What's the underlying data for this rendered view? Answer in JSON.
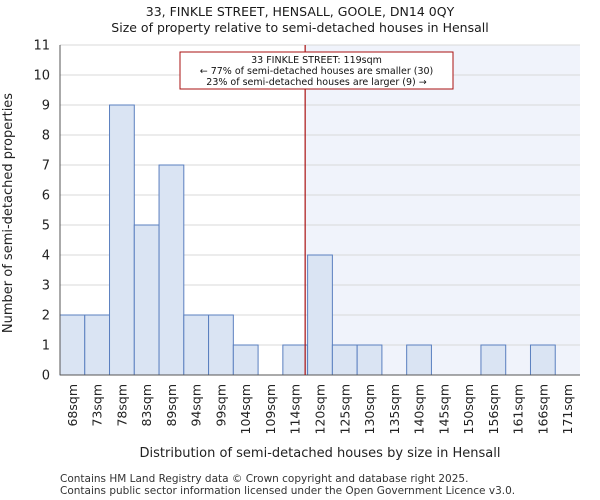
{
  "header": {
    "title": "33, FINKLE STREET, HENSALL, GOOLE, DN14 0QY",
    "subtitle": "Size of property relative to semi-detached houses in Hensall"
  },
  "footer": {
    "line1": "Contains HM Land Registry data © Crown copyright and database right 2025.",
    "line2": "Contains public sector information licensed under the Open Government Licence v3.0."
  },
  "chart_data": {
    "type": "bar",
    "title": "33, FINKLE STREET, HENSALL, GOOLE, DN14 0QY",
    "subtitle": "Size of property relative to semi-detached houses in Hensall",
    "xlabel": "Distribution of semi-detached houses by size in Hensall",
    "ylabel": "Number of semi-detached properties",
    "categories": [
      "68sqm",
      "73sqm",
      "78sqm",
      "83sqm",
      "89sqm",
      "94sqm",
      "99sqm",
      "104sqm",
      "109sqm",
      "114sqm",
      "120sqm",
      "125sqm",
      "130sqm",
      "135sqm",
      "140sqm",
      "145sqm",
      "150sqm",
      "156sqm",
      "161sqm",
      "166sqm",
      "171sqm"
    ],
    "values": [
      2,
      2,
      9,
      5,
      7,
      2,
      2,
      1,
      0,
      1,
      4,
      1,
      1,
      0,
      1,
      0,
      0,
      1,
      0,
      1,
      0
    ],
    "ylim": [
      0,
      11
    ],
    "yticks": [
      0,
      1,
      2,
      3,
      4,
      5,
      6,
      7,
      8,
      9,
      10,
      11
    ],
    "marker": {
      "value_sqm": 119,
      "bin_position": 9.9,
      "color": "#aa1111"
    },
    "annotation": {
      "line1": "33 FINKLE STREET: 119sqm",
      "line2": "← 77% of semi-detached houses are smaller (30)",
      "line3": "23% of semi-detached houses are larger (9) →"
    },
    "colors": {
      "bar_fill": "#dae4f3",
      "bar_stroke": "#5a7fbf",
      "highlight_bg": "#f0f3fb",
      "grid": "#d9d9d9",
      "annotation_border": "#aa1111"
    }
  }
}
